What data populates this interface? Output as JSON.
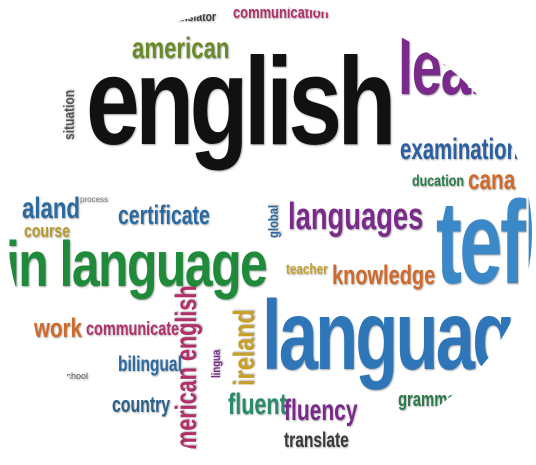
{
  "words": [
    {
      "text": "english",
      "color": "#111111",
      "rot": 0
    },
    {
      "text": "language",
      "color": "#2f76b9",
      "rot": 0
    },
    {
      "text": "in language",
      "color": "#1f8a3a",
      "rot": 0
    },
    {
      "text": "tefl",
      "color": "#3a88c8",
      "rot": 0
    },
    {
      "text": "lear",
      "color": "#7a2a8a",
      "rot": 0
    },
    {
      "text": "languages",
      "color": "#7a2a8a",
      "rot": 0
    },
    {
      "text": "examination",
      "color": "#2a5fa0",
      "rot": 0
    },
    {
      "text": "american",
      "color": "#6a8a2a",
      "rot": 0
    },
    {
      "text": "communication",
      "color": "#b2306a",
      "rot": 0
    },
    {
      "text": "translator",
      "color": "#3a3a3a",
      "rot": 0
    },
    {
      "text": "knowledge",
      "color": "#d06a2a",
      "rot": 0
    },
    {
      "text": "certificate",
      "color": "#2a6aa0",
      "rot": 0
    },
    {
      "text": "american english",
      "color": "#b2306a",
      "rot": -90
    },
    {
      "text": "ireland",
      "color": "#c7a02a",
      "rot": -90
    },
    {
      "text": "fluent",
      "color": "#2a8a6a",
      "rot": 0
    },
    {
      "text": "fluency",
      "color": "#7a2a8a",
      "rot": 0
    },
    {
      "text": "country",
      "color": "#2a5f8a",
      "rot": 0
    },
    {
      "text": "bilingual",
      "color": "#2a6aa0",
      "rot": 0
    },
    {
      "text": "communicate",
      "color": "#b2306a",
      "rot": 0
    },
    {
      "text": "work",
      "color": "#d06a2a",
      "rot": 0
    },
    {
      "text": "translate",
      "color": "#3a3a3a",
      "rot": 0
    },
    {
      "text": "grammar",
      "color": "#2a7a4a",
      "rot": 0
    },
    {
      "text": "teacher",
      "color": "#c7a02a",
      "rot": 0
    },
    {
      "text": "aland",
      "color": "#2a6aa0",
      "rot": 0
    },
    {
      "text": "course",
      "color": "#b89a2a",
      "rot": 0
    },
    {
      "text": "situation",
      "color": "#555555",
      "rot": -90
    },
    {
      "text": "ducation",
      "color": "#2a7a4a",
      "rot": 0
    },
    {
      "text": "cana",
      "color": "#d06a2a",
      "rot": 0
    },
    {
      "text": "global",
      "color": "#2a6aa0",
      "rot": -90
    },
    {
      "text": "process",
      "color": "#777777",
      "rot": 0
    },
    {
      "text": "school",
      "color": "#555555",
      "rot": 0
    },
    {
      "text": "lingua",
      "color": "#7a2a8a",
      "rot": -90
    }
  ]
}
